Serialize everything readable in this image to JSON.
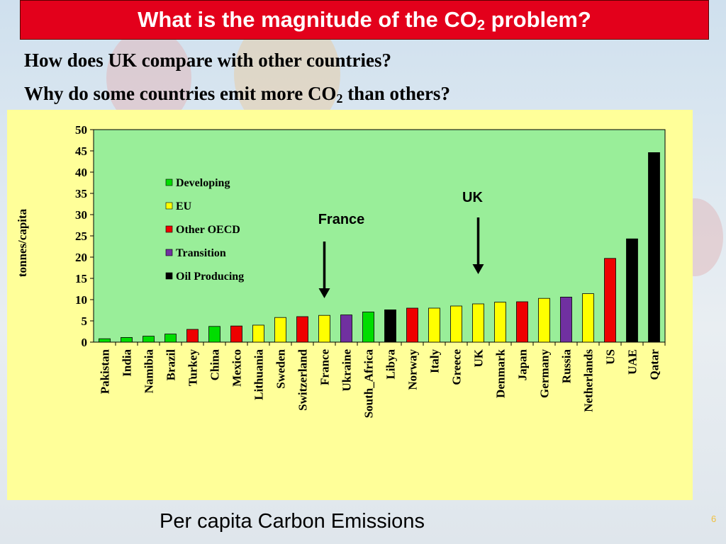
{
  "slide": {
    "title_main": "What is the magnitude of the CO",
    "title_sub": "2",
    "title_end": " problem?",
    "question1": "How does UK compare with other countries?",
    "question2_main": "Why do some countries emit more CO",
    "question2_sub": "2",
    "question2_end": " than others?",
    "caption": "Per capita Carbon Emissions",
    "page_number": "6"
  },
  "chart_data": {
    "type": "bar",
    "ylabel": "tonnes/capita",
    "ylim": [
      0,
      50
    ],
    "yticks": [
      0,
      5,
      10,
      15,
      20,
      25,
      30,
      35,
      40,
      45,
      50
    ],
    "grid": false,
    "legend_position": "upper-left inside plot",
    "categories": [
      "Pakistan",
      "India",
      "Namibia",
      "Brazil",
      "Turkey",
      "China",
      "Mexico",
      "Lithuania",
      "Sweden",
      "Switzerland",
      "France",
      "Ukraine",
      "South_Africa",
      "Libya",
      "Norway",
      "Italy",
      "Greece",
      "UK",
      "Denmark",
      "Japan",
      "Germany",
      "Russia",
      "Netherlands",
      "US",
      "UAE",
      "Qatar"
    ],
    "values": [
      0.8,
      1.1,
      1.4,
      1.9,
      3.0,
      3.7,
      3.8,
      4.0,
      5.8,
      6.0,
      6.3,
      6.4,
      7.1,
      7.6,
      8.0,
      8.0,
      8.5,
      9.0,
      9.4,
      9.5,
      10.3,
      10.6,
      11.4,
      19.7,
      24.3,
      44.6
    ],
    "groups": [
      "Developing",
      "Developing",
      "Developing",
      "Developing",
      "Other OECD",
      "Developing",
      "Other OECD",
      "EU",
      "EU",
      "Other OECD",
      "EU",
      "Transition",
      "Developing",
      "Oil Producing",
      "Other OECD",
      "EU",
      "EU",
      "EU",
      "EU",
      "Other OECD",
      "EU",
      "Transition",
      "EU",
      "Other OECD",
      "Oil Producing",
      "Oil Producing"
    ],
    "legend": [
      {
        "name": "Developing",
        "color": "#00dd00"
      },
      {
        "name": "EU",
        "color": "#ffff00"
      },
      {
        "name": "Other OECD",
        "color": "#ee0000"
      },
      {
        "name": "Transition",
        "color": "#7030a0"
      },
      {
        "name": "Oil Producing",
        "color": "#000000"
      }
    ],
    "plot_background": "#99ee99",
    "annotations": [
      {
        "text": "France",
        "target": "France"
      },
      {
        "text": "UK",
        "target": "UK"
      }
    ]
  }
}
